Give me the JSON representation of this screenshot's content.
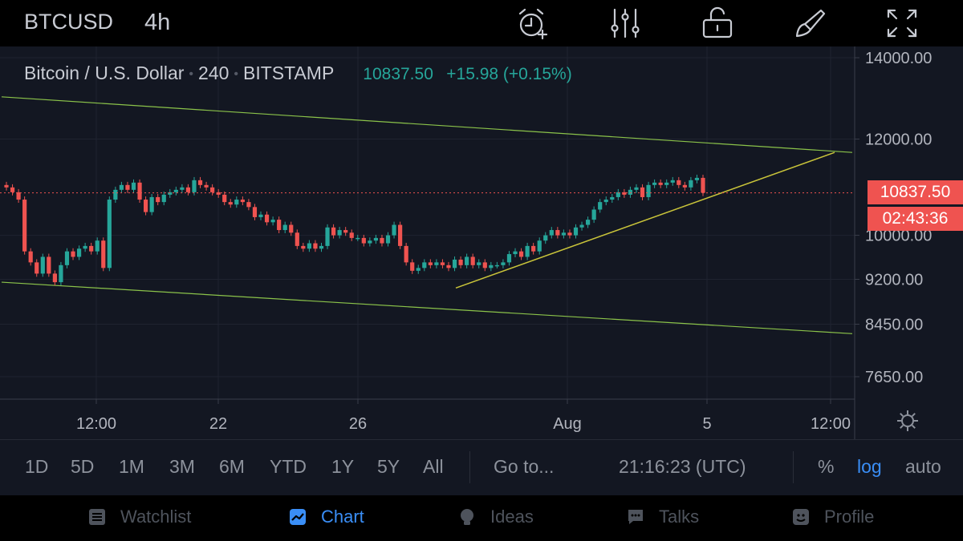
{
  "topbar": {
    "symbol": "BTCUSD",
    "interval": "4h",
    "icons": [
      "alarm-add-icon",
      "indicators-icon",
      "lock-icon",
      "brush-icon",
      "fullscreen-icon"
    ]
  },
  "legend": {
    "name": "Bitcoin / U.S. Dollar",
    "interval": "240",
    "exchange": "BITSTAMP",
    "last": "10837.50",
    "change": "+15.98 (+0.15%)"
  },
  "price_axis": {
    "labels": [
      "14000.00",
      "12000.00",
      "10000.00",
      "9200.00",
      "8450.00",
      "7650.00"
    ],
    "current_price": "10837.50",
    "countdown": "02:43:36"
  },
  "time_axis": {
    "labels": [
      "12:00",
      "22",
      "26",
      "Aug",
      "5",
      "12:00"
    ]
  },
  "range_bar": {
    "ranges": [
      "1D",
      "5D",
      "1M",
      "3M",
      "6M",
      "YTD",
      "1Y",
      "5Y",
      "All"
    ],
    "goto": "Go to...",
    "clock": "21:16:23 (UTC)",
    "percent": "%",
    "log": "log",
    "auto": "auto"
  },
  "bottom_nav": {
    "items": [
      {
        "label": "Watchlist",
        "icon": "watchlist-icon"
      },
      {
        "label": "Chart",
        "icon": "chart-icon"
      },
      {
        "label": "Ideas",
        "icon": "lightbulb-icon"
      },
      {
        "label": "Talks",
        "icon": "chat-icon"
      },
      {
        "label": "Profile",
        "icon": "profile-icon"
      }
    ],
    "active": "Chart"
  },
  "colors": {
    "up": "#26a69a",
    "down": "#ef5350",
    "channel": "#8bc34a",
    "trend": "#c9c43a",
    "accent": "#3a8ef6",
    "background": "#131722"
  },
  "chart_data": {
    "type": "candlestick",
    "symbol": "BTCUSD",
    "exchange": "BITSTAMP",
    "interval": "240",
    "scale": "log",
    "y_ticks": [
      14000,
      12000,
      10000,
      9200,
      8450,
      7650
    ],
    "x_ticks": [
      "12:00",
      "22",
      "26",
      "Aug",
      "5",
      "12:00"
    ],
    "last_price": 10837.5,
    "change": 15.98,
    "change_pct": 0.15,
    "closes": [
      10950,
      10850,
      10700,
      9700,
      9500,
      9300,
      9600,
      9300,
      9150,
      9450,
      9700,
      9600,
      9750,
      9800,
      9700,
      9900,
      9400,
      10700,
      10900,
      11000,
      10900,
      11050,
      10700,
      10450,
      10750,
      10650,
      10800,
      10850,
      10900,
      10950,
      10850,
      11100,
      11000,
      10950,
      10850,
      10800,
      10650,
      10600,
      10700,
      10650,
      10550,
      10350,
      10400,
      10250,
      10300,
      10100,
      10200,
      10050,
      9800,
      9750,
      9850,
      9750,
      9800,
      10150,
      10000,
      10100,
      10050,
      9950,
      9950,
      9850,
      9900,
      9950,
      9850,
      10000,
      10200,
      9800,
      9500,
      9350,
      9400,
      9500,
      9450,
      9500,
      9450,
      9400,
      9550,
      9450,
      9600,
      9450,
      9500,
      9400,
      9450,
      9450,
      9500,
      9650,
      9700,
      9600,
      9800,
      9700,
      9900,
      10000,
      10100,
      10000,
      10050,
      10000,
      10150,
      10200,
      10300,
      10500,
      10650,
      10700,
      10750,
      10850,
      10800,
      10900,
      10950,
      10750,
      11000,
      11050,
      11000,
      11050,
      11100,
      11000,
      10950,
      11100,
      11150,
      10837.5
    ],
    "channel_upper": [
      {
        "x": "start",
        "y": 13000
      },
      {
        "x": "end",
        "y": 11700
      }
    ],
    "channel_lower": [
      {
        "x": "start",
        "y": 9150
      },
      {
        "x": "end",
        "y": 8300
      }
    ],
    "trendline": [
      {
        "x": "Jul 29",
        "y": 9050
      },
      {
        "x": "Aug 5 12:00",
        "y": 11700
      }
    ]
  }
}
